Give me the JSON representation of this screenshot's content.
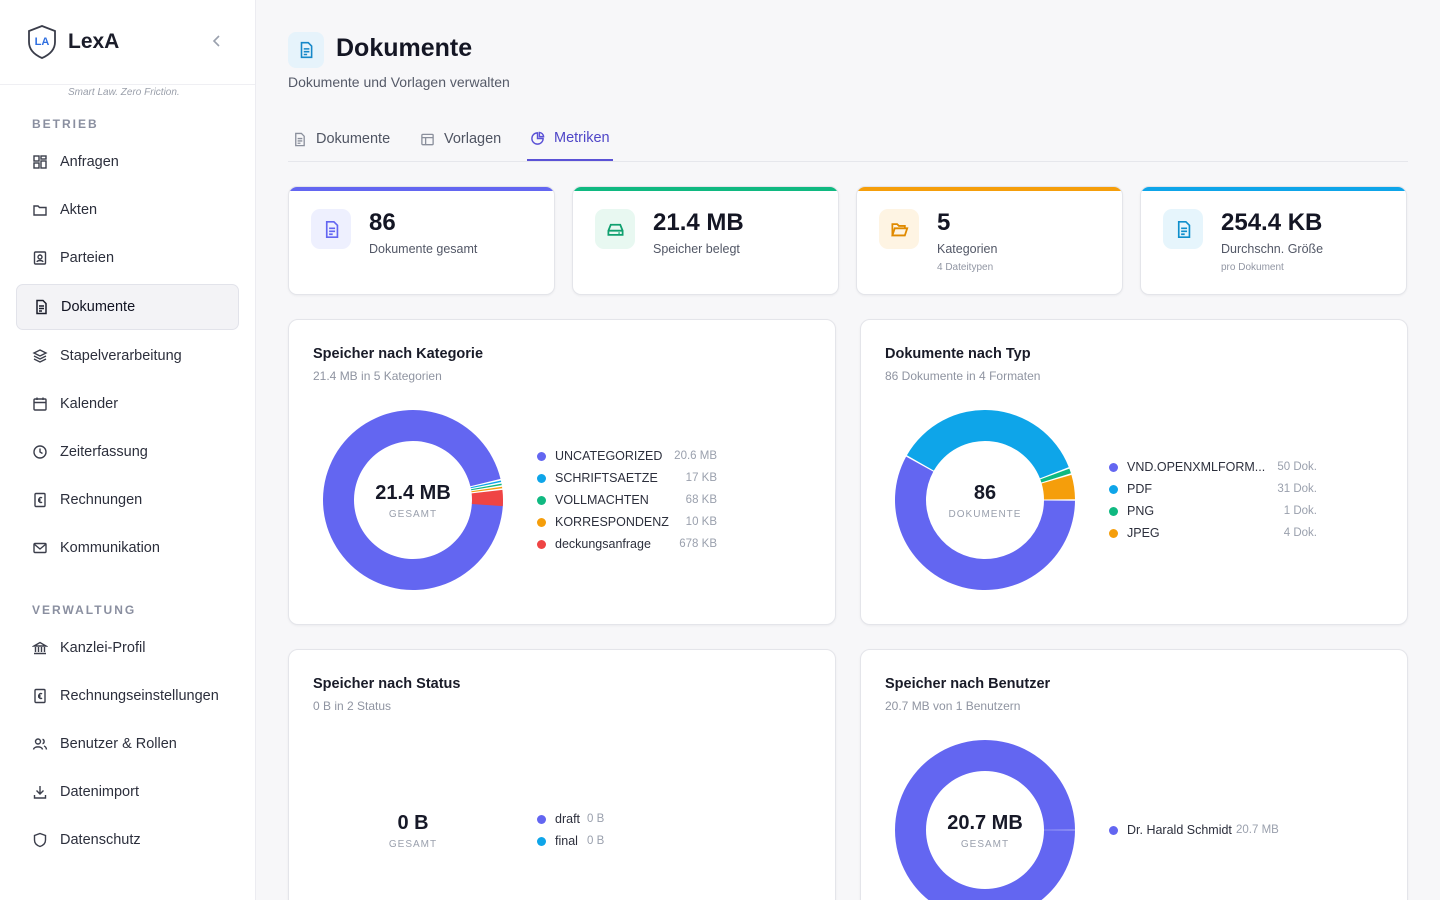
{
  "app": {
    "name": "LexA",
    "logo_text": "LA",
    "tagline": "Smart Law. Zero Friction."
  },
  "sidebar": {
    "section_ops": "BETRIEB",
    "ops_items": [
      {
        "label": "Anfragen",
        "icon": "grid-icon"
      },
      {
        "label": "Akten",
        "icon": "folder-icon"
      },
      {
        "label": "Parteien",
        "icon": "contact-icon"
      },
      {
        "label": "Dokumente",
        "icon": "document-icon",
        "active": true
      },
      {
        "label": "Stapelverarbeitung",
        "icon": "layers-icon"
      },
      {
        "label": "Kalender",
        "icon": "calendar-icon"
      },
      {
        "label": "Zeiterfassung",
        "icon": "clock-icon"
      },
      {
        "label": "Rechnungen",
        "icon": "invoice-icon"
      },
      {
        "label": "Kommunikation",
        "icon": "mail-icon"
      }
    ],
    "section_admin": "VERWALTUNG",
    "admin_items": [
      {
        "label": "Kanzlei-Profil",
        "icon": "bank-icon"
      },
      {
        "label": "Rechnungseinstellungen",
        "icon": "invoice-settings-icon"
      },
      {
        "label": "Benutzer & Rollen",
        "icon": "users-icon"
      },
      {
        "label": "Datenimport",
        "icon": "download-icon"
      },
      {
        "label": "Datenschutz",
        "icon": "shield-icon"
      }
    ]
  },
  "page": {
    "title": "Dokumente",
    "subtitle": "Dokumente und Vorlagen verwalten"
  },
  "tabs": [
    {
      "label": "Dokumente",
      "icon": "document-icon"
    },
    {
      "label": "Vorlagen",
      "icon": "template-icon"
    },
    {
      "label": "Metriken",
      "icon": "pie-icon",
      "active": true
    }
  ],
  "stats": [
    {
      "value": "86",
      "label": "Dokumente gesamt",
      "sub": "",
      "color": "#6366f1",
      "icon": "document-icon"
    },
    {
      "value": "21.4 MB",
      "label": "Speicher belegt",
      "sub": "",
      "color": "#10b981",
      "icon": "drive-icon"
    },
    {
      "value": "5",
      "label": "Kategorien",
      "sub": "4 Dateitypen",
      "color": "#f59e0b",
      "icon": "folder-open-icon"
    },
    {
      "value": "254.4 KB",
      "label": "Durchschn. Größe",
      "sub": "pro Dokument",
      "color": "#0ea5e9",
      "icon": "document-icon"
    }
  ],
  "cards": {
    "category": {
      "title": "Speicher nach Kategorie",
      "subtitle": "21.4 MB in 5 Kategorien",
      "center_value": "21.4 MB",
      "center_label": "GESAMT",
      "legend": [
        {
          "name": "UNCATEGORIZED",
          "value": "20.6 MB"
        },
        {
          "name": "SCHRIFTSAETZE",
          "value": "17 KB"
        },
        {
          "name": "VOLLMACHTEN",
          "value": "68 KB"
        },
        {
          "name": "KORRESPONDENZ",
          "value": "10 KB"
        },
        {
          "name": "deckungsanfrage",
          "value": "678 KB"
        }
      ]
    },
    "type": {
      "title": "Dokumente nach Typ",
      "subtitle": "86 Dokumente in 4 Formaten",
      "center_value": "86",
      "center_label": "DOKUMENTE",
      "legend": [
        {
          "name": "VND.OPENXMLFORM...",
          "value": "50 Dok."
        },
        {
          "name": "PDF",
          "value": "31 Dok."
        },
        {
          "name": "PNG",
          "value": "1 Dok."
        },
        {
          "name": "JPEG",
          "value": "4 Dok."
        }
      ]
    },
    "status": {
      "title": "Speicher nach Status",
      "subtitle": "0 B in 2 Status",
      "center_value": "0 B",
      "center_label": "GESAMT",
      "legend": [
        {
          "name": "draft",
          "value": "0 B"
        },
        {
          "name": "final",
          "value": "0 B"
        }
      ]
    },
    "user": {
      "title": "Speicher nach Benutzer",
      "subtitle": "20.7 MB von 1 Benutzern",
      "center_value": "20.7 MB",
      "center_label": "GESAMT",
      "legend": [
        {
          "name": "Dr. Harald Schmidt",
          "value": "20.7 MB"
        }
      ]
    }
  },
  "chart_data": [
    {
      "type": "pie",
      "title": "Speicher nach Kategorie",
      "categories": [
        "UNCATEGORIZED",
        "SCHRIFTSAETZE",
        "VOLLMACHTEN",
        "KORRESPONDENZ",
        "deckungsanfrage"
      ],
      "values_kb": [
        20600,
        17,
        68,
        10,
        678
      ],
      "colors": [
        "#6366f1",
        "#0ea5e9",
        "#10b981",
        "#f59e0b",
        "#ef4444"
      ]
    },
    {
      "type": "pie",
      "title": "Dokumente nach Typ",
      "categories": [
        "VND.OPENXMLFORM...",
        "PDF",
        "PNG",
        "JPEG"
      ],
      "values": [
        50,
        31,
        1,
        4
      ],
      "colors": [
        "#6366f1",
        "#0ea5e9",
        "#10b981",
        "#f59e0b"
      ]
    },
    {
      "type": "pie",
      "title": "Speicher nach Status",
      "categories": [
        "draft",
        "final"
      ],
      "values": [
        0,
        0
      ],
      "colors": [
        "#6366f1",
        "#0ea5e9"
      ]
    },
    {
      "type": "pie",
      "title": "Speicher nach Benutzer",
      "categories": [
        "Dr. Harald Schmidt"
      ],
      "values_mb": [
        20.7
      ],
      "colors": [
        "#6366f1"
      ]
    }
  ]
}
